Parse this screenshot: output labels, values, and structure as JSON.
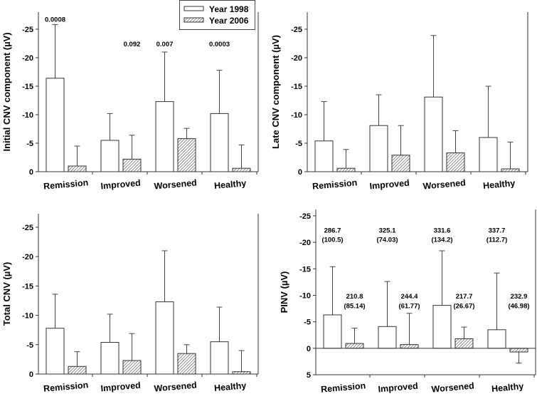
{
  "legend": {
    "items": [
      "Year 1998",
      "Year 2006"
    ]
  },
  "chart_data": [
    {
      "type": "bar",
      "ylabel": "Initial CNV component (µV)",
      "categories": [
        "Remission",
        "Improved",
        "Worsened",
        "Healthy"
      ],
      "ylim": [
        0,
        -28
      ],
      "yticks": [
        0,
        -5,
        -10,
        -15,
        -20,
        -25
      ],
      "series": [
        {
          "name": "Year 1998",
          "values": [
            -16.4,
            -5.5,
            -12.3,
            -10.2
          ],
          "error_top": [
            -25.8,
            -10.2,
            -21.0,
            -17.8
          ]
        },
        {
          "name": "Year 2006",
          "values": [
            -1.0,
            -2.2,
            -5.8,
            -0.6
          ],
          "error_top": [
            -4.5,
            -6.4,
            -7.6,
            -4.7
          ]
        }
      ],
      "annotations": [
        {
          "text": "0.0008",
          "category": 0,
          "series": 0,
          "y": -26.8
        },
        {
          "text": "0.092",
          "category": 1,
          "series": 1,
          "y": -22.5
        },
        {
          "text": "0.007",
          "category": 2,
          "series": 0,
          "y": -22.5
        },
        {
          "text": "0.0003",
          "category": 3,
          "series": 0,
          "y": -22.5
        }
      ]
    },
    {
      "type": "bar",
      "ylabel": "Late CNV component (µV)",
      "categories": [
        "Remission",
        "Improved",
        "Worsened",
        "Healthy"
      ],
      "ylim": [
        0,
        -28
      ],
      "yticks": [
        0,
        -5,
        -10,
        -15,
        -20,
        -25
      ],
      "series": [
        {
          "name": "Year 1998",
          "values": [
            -5.4,
            -8.1,
            -13.1,
            -6.0
          ],
          "error_top": [
            -12.3,
            -13.5,
            -23.9,
            -15.0
          ]
        },
        {
          "name": "Year 2006",
          "values": [
            -0.6,
            -2.9,
            -3.3,
            -0.5
          ],
          "error_top": [
            -3.9,
            -8.1,
            -7.2,
            -5.2
          ]
        }
      ],
      "annotations": []
    },
    {
      "type": "bar",
      "ylabel": "Total CNV (µV)",
      "categories": [
        "Remission",
        "Improved",
        "Worsened",
        "Healthy"
      ],
      "ylim": [
        0,
        -27.3
      ],
      "yticks": [
        0,
        -5,
        -10,
        -15,
        -20,
        -25
      ],
      "series": [
        {
          "name": "Year 1998",
          "values": [
            -7.8,
            -5.4,
            -12.3,
            -5.5
          ],
          "error_top": [
            -13.6,
            -10.2,
            -21.0,
            -11.4
          ]
        },
        {
          "name": "Year 2006",
          "values": [
            -1.3,
            -2.3,
            -3.5,
            -0.4
          ],
          "error_top": [
            -3.8,
            -6.9,
            -5.0,
            -4.0
          ]
        }
      ],
      "annotations": []
    },
    {
      "type": "bar",
      "ylabel": "PINV  (µV)",
      "categories": [
        "Remission",
        "Improved",
        "Worsened",
        "Healthy"
      ],
      "ylim": [
        5,
        -26.2
      ],
      "yticks": [
        5,
        0,
        -5,
        -10,
        -15,
        -20,
        -25
      ],
      "series": [
        {
          "name": "Year 1998",
          "values": [
            -6.3,
            -4.1,
            -8.1,
            -3.5
          ],
          "error_top": [
            -15.4,
            -12.6,
            -18.4,
            -14.2
          ]
        },
        {
          "name": "Year 2006",
          "values": [
            -0.9,
            -0.7,
            -1.8,
            0.7
          ],
          "error_top": [
            -3.8,
            -6.6,
            -4.0,
            2.8
          ]
        }
      ],
      "annotations": [
        {
          "text": "286.7",
          "category": 0,
          "series": 0,
          "y": -22.4
        },
        {
          "text": "(100.5)",
          "category": 0,
          "series": 0,
          "y": -20.6
        },
        {
          "text": "325.1",
          "category": 1,
          "series": 0,
          "y": -22.4
        },
        {
          "text": "(74.03)",
          "category": 1,
          "series": 0,
          "y": -20.6
        },
        {
          "text": "331.6",
          "category": 2,
          "series": 0,
          "y": -22.4
        },
        {
          "text": "(134.2)",
          "category": 2,
          "series": 0,
          "y": -20.6
        },
        {
          "text": "337.7",
          "category": 3,
          "series": 0,
          "y": -22.4
        },
        {
          "text": "(112.7)",
          "category": 3,
          "series": 0,
          "y": -20.6
        },
        {
          "text": "210.8",
          "category": 0,
          "series": 1,
          "y": -9.9
        },
        {
          "text": "(85.14)",
          "category": 0,
          "series": 1,
          "y": -8.1
        },
        {
          "text": "244.4",
          "category": 1,
          "series": 1,
          "y": -9.9
        },
        {
          "text": "(61.77)",
          "category": 1,
          "series": 1,
          "y": -8.1
        },
        {
          "text": "217.7",
          "category": 2,
          "series": 1,
          "y": -9.9
        },
        {
          "text": "(26.67)",
          "category": 2,
          "series": 1,
          "y": -8.1
        },
        {
          "text": "232.9",
          "category": 3,
          "series": 1,
          "y": -9.9
        },
        {
          "text": "(46.98)",
          "category": 3,
          "series": 1,
          "y": -8.1
        }
      ]
    }
  ]
}
